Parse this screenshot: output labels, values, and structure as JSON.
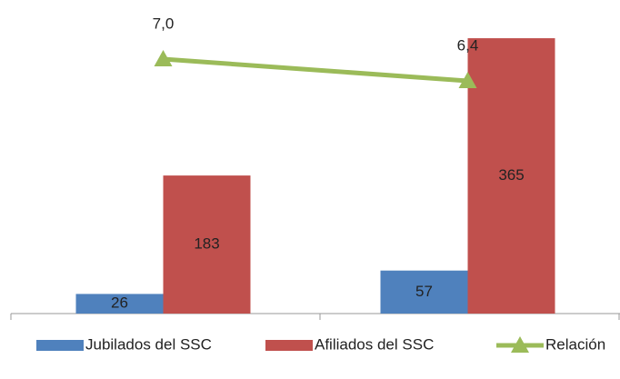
{
  "chart_data": {
    "type": "bar",
    "categories": [
      null,
      null
    ],
    "ylim": [
      0,
      400
    ],
    "y2lim": [
      0,
      8.3
    ],
    "legend": "bottom",
    "series": [
      {
        "name": "Jubilados del SSC",
        "color": "#4f81bd",
        "values": [
          26,
          57
        ]
      },
      {
        "name": "Afiliados del SSC",
        "color": "#c0504d",
        "values": [
          183,
          365
        ]
      },
      {
        "name": "Relación",
        "type": "line",
        "axis": "y2",
        "color": "#9bbb59",
        "values": [
          7.0,
          6.4
        ],
        "value_labels": [
          "7,0",
          "6,4"
        ]
      }
    ]
  }
}
